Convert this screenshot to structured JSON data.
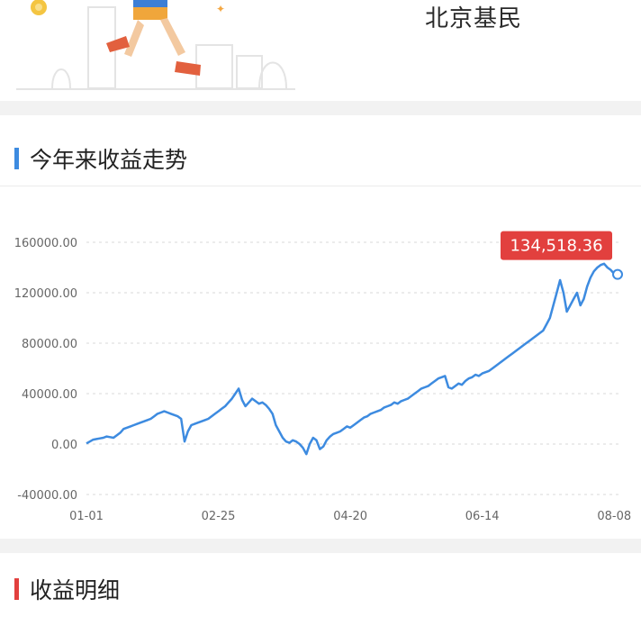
{
  "header": {
    "username": "北京基民"
  },
  "colors": {
    "accent_blue": "#3d8be0",
    "accent_red": "#e2403e",
    "grid": "#d9d9d9",
    "tooltip_bg": "#e2403e"
  },
  "chart_section": {
    "title": "今年来收益走势",
    "title_bar_color": "#3d8be0"
  },
  "detail_section": {
    "title": "收益明细",
    "title_bar_color": "#e2403e"
  },
  "chart_data": {
    "type": "line",
    "title": "",
    "xlabel": "",
    "ylabel": "",
    "ylim": [
      -40000,
      160000
    ],
    "yticks": [
      "160000.00",
      "120000.00",
      "80000.00",
      "40000.00",
      "0.00",
      "-40000.00"
    ],
    "ytick_values": [
      160000,
      120000,
      80000,
      40000,
      0,
      -40000
    ],
    "xticks": [
      "01-01",
      "02-25",
      "04-20",
      "06-14",
      "08-08"
    ],
    "xtick_index": [
      0,
      39,
      78,
      117,
      156
    ],
    "grid": true,
    "last_value_label": "134,518.36",
    "series": [
      {
        "name": "",
        "values": [
          500,
          2000,
          3500,
          4000,
          4500,
          5000,
          6000,
          5500,
          5000,
          7000,
          9000,
          12000,
          13000,
          14000,
          15000,
          16000,
          17000,
          18000,
          19000,
          20000,
          22000,
          24000,
          25000,
          26000,
          25000,
          24000,
          23000,
          22000,
          20000,
          2000,
          10000,
          15000,
          16000,
          17000,
          18000,
          19000,
          20000,
          22000,
          24000,
          26000,
          28000,
          30000,
          33000,
          36000,
          40000,
          44000,
          35000,
          30000,
          33000,
          36000,
          34000,
          32000,
          33000,
          31000,
          28000,
          24000,
          15000,
          10000,
          5000,
          2000,
          1000,
          3000,
          2000,
          0,
          -3000,
          -8000,
          0,
          5000,
          3000,
          -4000,
          -2000,
          3000,
          6000,
          8000,
          9000,
          10000,
          12000,
          14000,
          13000,
          15000,
          17000,
          19000,
          21000,
          22000,
          24000,
          25000,
          26000,
          27000,
          29000,
          30000,
          31000,
          33000,
          32000,
          34000,
          35000,
          36000,
          38000,
          40000,
          42000,
          44000,
          45000,
          46000,
          48000,
          50000,
          52000,
          53000,
          54000,
          45000,
          44000,
          46000,
          48000,
          47000,
          50000,
          52000,
          53000,
          55000,
          54000,
          56000,
          57000,
          58000,
          60000,
          62000,
          64000,
          66000,
          68000,
          70000,
          72000,
          74000,
          76000,
          78000,
          80000,
          82000,
          84000,
          86000,
          88000,
          90000,
          95000,
          100000,
          110000,
          120000,
          130000,
          120000,
          105000,
          110000,
          115000,
          120000,
          110000,
          115000,
          125000,
          132000,
          137000,
          140000,
          142000,
          143000,
          140000,
          138000,
          135000,
          134518.36
        ]
      }
    ]
  }
}
